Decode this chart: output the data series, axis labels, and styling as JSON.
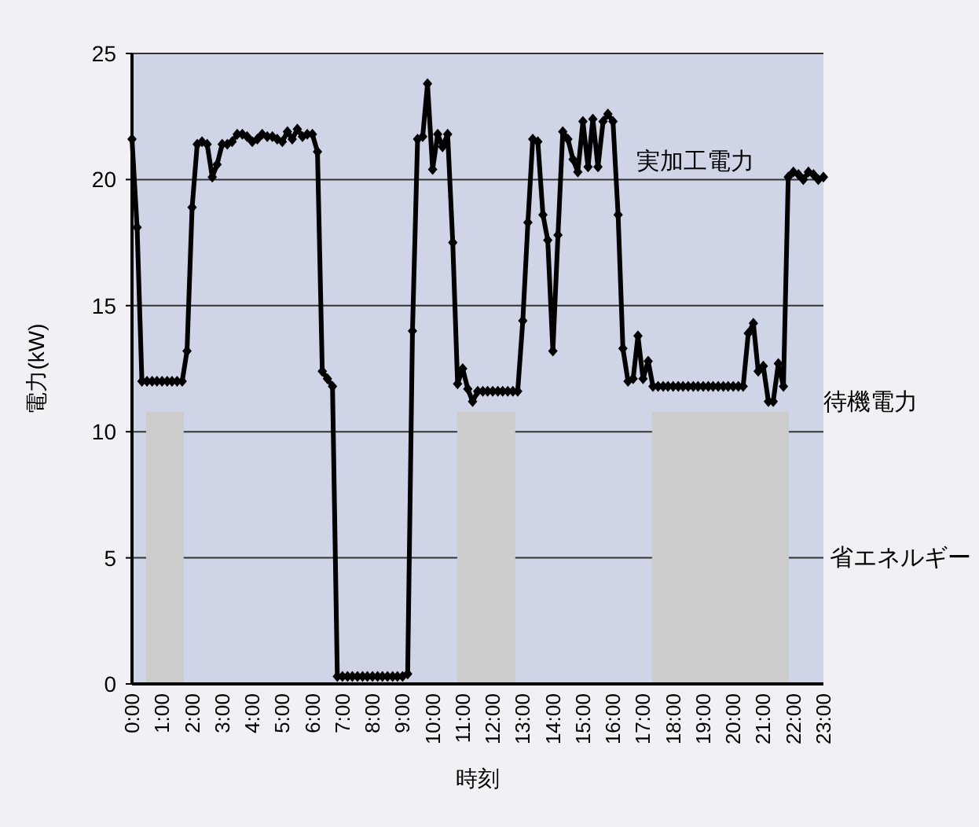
{
  "chart_data": {
    "type": "line",
    "xlabel": "時刻",
    "ylabel": "電力(kW)",
    "xlim": [
      0,
      23
    ],
    "ylim": [
      0,
      25
    ],
    "yticks": [
      0,
      5,
      10,
      15,
      20,
      25
    ],
    "xticks": [
      {
        "value": 0,
        "label": "0:00"
      },
      {
        "value": 1,
        "label": "1:00"
      },
      {
        "value": 2,
        "label": "2:00"
      },
      {
        "value": 3,
        "label": "3:00"
      },
      {
        "value": 4,
        "label": "4:00"
      },
      {
        "value": 5,
        "label": "5:00"
      },
      {
        "value": 6,
        "label": "6:00"
      },
      {
        "value": 7,
        "label": "7:00"
      },
      {
        "value": 8,
        "label": "8:00"
      },
      {
        "value": 9,
        "label": "9:00"
      },
      {
        "value": 10,
        "label": "10:00"
      },
      {
        "value": 11,
        "label": "11:00"
      },
      {
        "value": 12,
        "label": "12:00"
      },
      {
        "value": 13,
        "label": "13:00"
      },
      {
        "value": 14,
        "label": "14:00"
      },
      {
        "value": 15,
        "label": "15:00"
      },
      {
        "value": 16,
        "label": "16:00"
      },
      {
        "value": 17,
        "label": "17:00"
      },
      {
        "value": 18,
        "label": "18:00"
      },
      {
        "value": 19,
        "label": "19:00"
      },
      {
        "value": 20,
        "label": "20:00"
      },
      {
        "value": 21,
        "label": "21:00"
      },
      {
        "value": 22,
        "label": "22:00"
      },
      {
        "value": 23,
        "label": "23:00"
      }
    ],
    "grid": "y",
    "series": [
      {
        "type": "area",
        "color": "#cccccc",
        "x": [
          0.47,
          1.72
        ],
        "values": [
          10.8,
          10.8
        ]
      },
      {
        "type": "area",
        "color": "#cccccc",
        "x": [
          10.82,
          12.75
        ],
        "values": [
          10.8,
          10.8
        ]
      },
      {
        "type": "area",
        "color": "#cccccc",
        "x": [
          17.3,
          21.85
        ],
        "values": [
          10.8,
          10.8
        ]
      },
      {
        "marker": "diamond",
        "color": "#000000",
        "x": [
          0,
          0.17,
          0.33,
          0.5,
          0.67,
          0.83,
          1,
          1.17,
          1.33,
          1.5,
          1.67,
          1.83,
          2,
          2.17,
          2.33,
          2.5,
          2.67,
          2.83,
          3,
          3.17,
          3.33,
          3.5,
          3.67,
          3.83,
          4,
          4.17,
          4.33,
          4.5,
          4.67,
          4.83,
          5,
          5.17,
          5.33,
          5.5,
          5.67,
          5.83,
          6,
          6.17,
          6.33,
          6.5,
          6.67,
          6.83,
          7,
          7.17,
          7.33,
          7.5,
          7.67,
          7.83,
          8,
          8.17,
          8.33,
          8.5,
          8.67,
          8.83,
          9,
          9.17,
          9.33,
          9.5,
          9.67,
          9.83,
          10,
          10.17,
          10.33,
          10.5,
          10.67,
          10.83,
          11,
          11.17,
          11.33,
          11.5,
          11.67,
          11.83,
          12,
          12.17,
          12.33,
          12.5,
          12.67,
          12.83,
          13,
          13.17,
          13.33,
          13.5,
          13.67,
          13.83,
          14,
          14.17,
          14.33,
          14.5,
          14.67,
          14.83,
          15,
          15.17,
          15.33,
          15.5,
          15.67,
          15.83,
          16,
          16.17,
          16.33,
          16.5,
          16.67,
          16.83,
          17,
          17.17,
          17.33,
          17.5,
          17.67,
          17.83,
          18,
          18.17,
          18.33,
          18.5,
          18.67,
          18.83,
          19,
          19.17,
          19.33,
          19.5,
          19.67,
          19.83,
          20,
          20.17,
          20.33,
          20.5,
          20.67,
          20.83,
          21,
          21.17,
          21.33,
          21.5,
          21.67,
          21.83,
          22,
          22.17,
          22.33,
          22.5,
          22.67,
          22.83,
          23
        ],
        "values": [
          21.6,
          18.1,
          12.0,
          12.0,
          12.0,
          12.0,
          12.0,
          12.0,
          12.0,
          12.0,
          12.0,
          13.2,
          18.9,
          21.4,
          21.5,
          21.4,
          20.1,
          20.6,
          21.4,
          21.4,
          21.5,
          21.8,
          21.8,
          21.7,
          21.5,
          21.6,
          21.8,
          21.7,
          21.7,
          21.6,
          21.5,
          21.9,
          21.6,
          22.0,
          21.7,
          21.8,
          21.8,
          21.1,
          12.4,
          12.1,
          11.8,
          0.3,
          0.3,
          0.3,
          0.3,
          0.3,
          0.3,
          0.3,
          0.3,
          0.3,
          0.3,
          0.3,
          0.3,
          0.3,
          0.3,
          0.4,
          14.0,
          21.6,
          21.7,
          23.8,
          20.4,
          21.8,
          21.3,
          21.8,
          17.5,
          11.9,
          12.5,
          11.7,
          11.2,
          11.6,
          11.6,
          11.6,
          11.6,
          11.6,
          11.6,
          11.6,
          11.6,
          11.6,
          14.4,
          18.3,
          21.6,
          21.5,
          18.6,
          17.6,
          13.2,
          17.8,
          21.9,
          21.6,
          20.8,
          20.3,
          22.3,
          20.5,
          22.4,
          20.5,
          22.3,
          22.6,
          22.3,
          18.6,
          13.3,
          12.0,
          12.1,
          13.8,
          12.1,
          12.8,
          11.8,
          11.8,
          11.8,
          11.8,
          11.8,
          11.8,
          11.8,
          11.8,
          11.8,
          11.8,
          11.8,
          11.8,
          11.8,
          11.8,
          11.8,
          11.8,
          11.8,
          11.8,
          11.8,
          13.9,
          14.3,
          12.4,
          12.6,
          11.2,
          11.2,
          12.7,
          11.8,
          20.1,
          20.3,
          20.2,
          20.0,
          20.3,
          20.2,
          20.0,
          20.1
        ]
      }
    ],
    "annotations": [
      "実加工電力",
      "待機電力",
      "省エネルギー"
    ]
  }
}
